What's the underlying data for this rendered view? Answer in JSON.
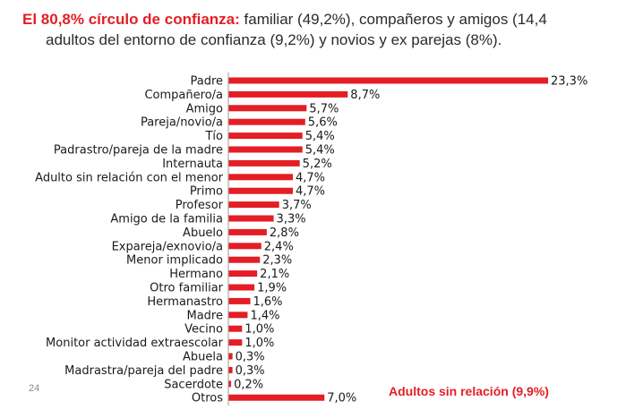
{
  "header": {
    "line1_highlight": "El 80,8% círculo de confianza:",
    "line1_rest": " familiar (49,2%), compañeros y amigos (14,4",
    "line2": "adultos del entorno de confianza (9,2%) y novios y ex parejas (8%)."
  },
  "page_number": "24",
  "note": "Adultos sin relación (9,9%)",
  "colors": {
    "bar": "#e31e24",
    "highlight": "#e31e24",
    "text": "#1a1a1a"
  },
  "chart_data": {
    "type": "bar",
    "orientation": "horizontal",
    "title": "",
    "xlabel": "",
    "ylabel": "",
    "xlim": [
      0,
      23.3
    ],
    "grid": false,
    "categories": [
      "Padre",
      "Compañero/a",
      "Amigo",
      "Pareja/novio/a",
      "Tío",
      "Padrastro/pareja de la madre",
      "Internauta",
      "Adulto sin relación con el menor",
      "Primo",
      "Profesor",
      "Amigo de la familia",
      "Abuelo",
      "Expareja/exnovio/a",
      "Menor implicado",
      "Hermano",
      "Otro familiar",
      "Hermanastro",
      "Madre",
      "Vecino",
      "Monitor actividad extraescolar",
      "Abuela",
      "Madrastra/pareja del padre",
      "Sacerdote",
      "Otros"
    ],
    "values": [
      23.3,
      8.7,
      5.7,
      5.6,
      5.4,
      5.4,
      5.2,
      4.7,
      4.7,
      3.7,
      3.3,
      2.8,
      2.4,
      2.3,
      2.1,
      1.9,
      1.6,
      1.4,
      1.0,
      1.0,
      0.3,
      0.3,
      0.2,
      7.0
    ],
    "value_labels": [
      "23,3%",
      "8,7%",
      "5,7%",
      "5,6%",
      "5,4%",
      "5,4%",
      "5,2%",
      "4,7%",
      "4,7%",
      "3,7%",
      "3,3%",
      "2,8%",
      "2,4%",
      "2,3%",
      "2,1%",
      "1,9%",
      "1,6%",
      "1,4%",
      "1,0%",
      "1,0%",
      "0,3%",
      "0,3%",
      "0,2%",
      "7,0%"
    ]
  }
}
